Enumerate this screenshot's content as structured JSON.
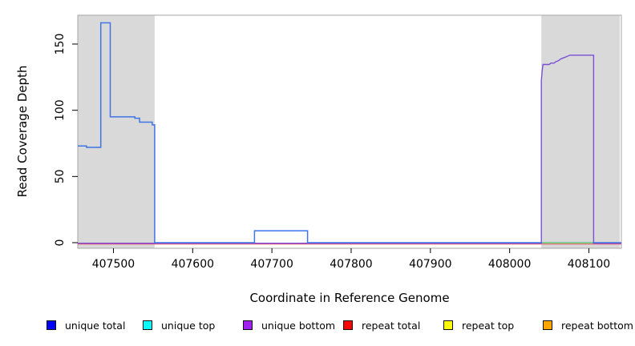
{
  "chart_data": {
    "type": "line",
    "step": true,
    "title": "",
    "xlabel": "Coordinate in Reference Genome",
    "ylabel": "Read Coverage Depth",
    "xlim": [
      407455,
      408141
    ],
    "ylim": [
      0,
      172
    ],
    "xticks": [
      407500,
      407600,
      407700,
      407800,
      407900,
      408000,
      408100
    ],
    "yticks": [
      0,
      50,
      100,
      150
    ],
    "grid": false,
    "legend_position": "bottom",
    "plot_bg": "#ffffff",
    "box_color": "#a6a6a6",
    "shaded_regions": [
      {
        "name": "left-repeat-region",
        "x0": 407455,
        "x1": 407552,
        "color": "#d9d9d9"
      },
      {
        "name": "right-repeat-region",
        "x0": 408040,
        "x1": 408139,
        "color": "#d9d9d9"
      }
    ],
    "series": [
      {
        "name": "repeat bottom",
        "legend_color": "#FFA500",
        "line_color": "#FFA500",
        "points": [
          [
            407455,
            0
          ],
          [
            408141,
            0
          ]
        ]
      },
      {
        "name": "repeat top",
        "legend_color": "#FFFF00",
        "line_color": "#FFFF00",
        "points": [
          [
            407455,
            0
          ],
          [
            408141,
            0
          ]
        ]
      },
      {
        "name": "unique top",
        "legend_color": "#00FFFF",
        "line_color": "#00FFFF",
        "points": [
          [
            407455,
            0
          ],
          [
            408141,
            0
          ]
        ]
      },
      {
        "name": "repeat total",
        "legend_color": "#FF0000",
        "line_color": "#F0506A",
        "points": [
          [
            407455,
            0
          ],
          [
            408141,
            0
          ]
        ]
      },
      {
        "name": "unique bottom",
        "legend_color": "#A020F0",
        "line_color": "#7B4FD8",
        "points": [
          [
            407455,
            0
          ],
          [
            408040,
            0
          ],
          [
            408040,
            123
          ],
          [
            408041,
            130
          ],
          [
            408042,
            135
          ],
          [
            408050,
            135
          ],
          [
            408052,
            136
          ],
          [
            408056,
            136
          ],
          [
            408058,
            137
          ],
          [
            408062,
            138
          ],
          [
            408064,
            139
          ],
          [
            408068,
            140
          ],
          [
            408072,
            141
          ],
          [
            408076,
            142
          ],
          [
            408106,
            142
          ],
          [
            408106,
            0
          ],
          [
            408141,
            0
          ]
        ]
      },
      {
        "name": "unique total",
        "legend_color": "#0000FF",
        "line_color": "#3E74E6",
        "points": [
          [
            407455,
            73
          ],
          [
            407466,
            73
          ],
          [
            407466,
            72
          ],
          [
            407484,
            72
          ],
          [
            407484,
            166
          ],
          [
            407496,
            166
          ],
          [
            407496,
            95
          ],
          [
            407527,
            95
          ],
          [
            407527,
            94
          ],
          [
            407533,
            94
          ],
          [
            407533,
            91
          ],
          [
            407549,
            91
          ],
          [
            407549,
            89
          ],
          [
            407552,
            89
          ],
          [
            407552,
            0
          ],
          [
            407678,
            0
          ],
          [
            407678,
            9
          ],
          [
            407745,
            9
          ],
          [
            407745,
            0
          ],
          [
            408141,
            0
          ]
        ]
      }
    ],
    "overlap_segment": {
      "x0": 408041,
      "x1": 408105,
      "y": 0,
      "color": "#7ED87E",
      "note": "unique top + repeat top lines overlap at 0 appearing green"
    }
  },
  "legend": {
    "items": [
      {
        "label": "unique total",
        "color": "#0000FF"
      },
      {
        "label": "unique top",
        "color": "#00FFFF"
      },
      {
        "label": "unique bottom",
        "color": "#A020F0"
      },
      {
        "label": "repeat total",
        "color": "#FF0000"
      },
      {
        "label": "repeat top",
        "color": "#FFFF00"
      },
      {
        "label": "repeat bottom",
        "color": "#FFA500"
      }
    ]
  }
}
